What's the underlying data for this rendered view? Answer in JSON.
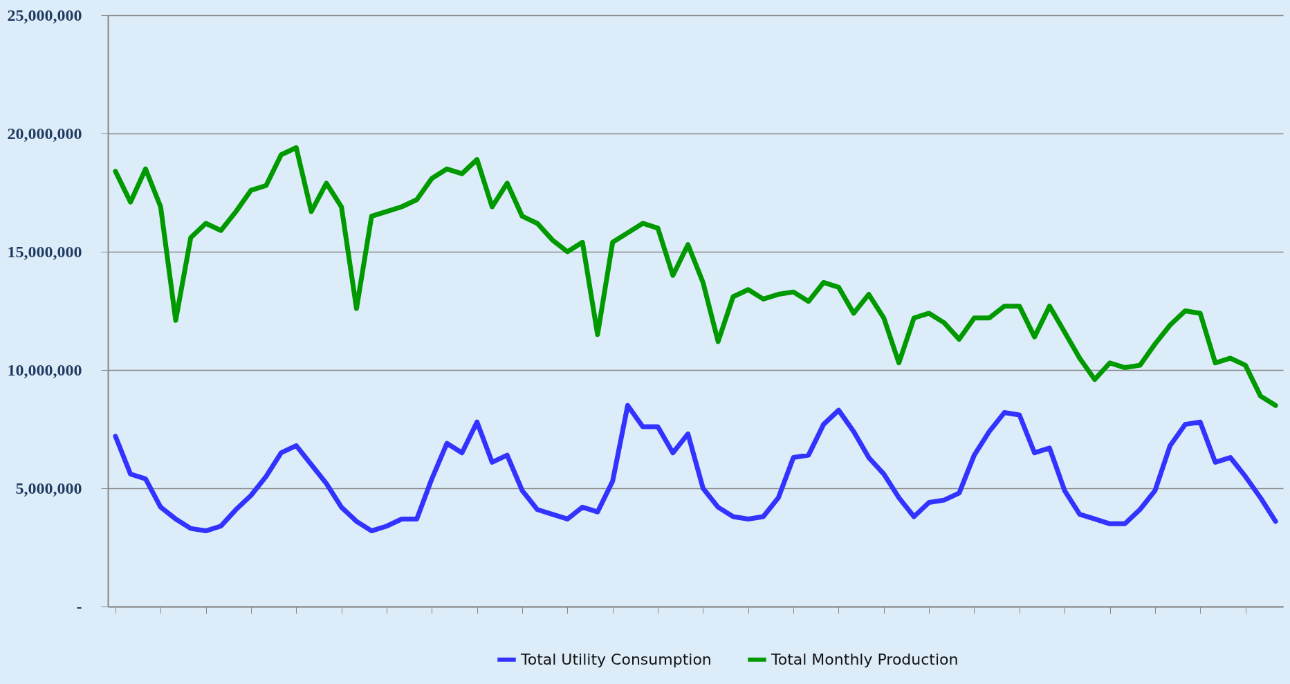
{
  "chart_data": {
    "type": "line",
    "categories": [
      null,
      null,
      null,
      null,
      null,
      null,
      null,
      null,
      null,
      null,
      null,
      null,
      null,
      null,
      null,
      null,
      null,
      null,
      null,
      null,
      null,
      null,
      null,
      null,
      null,
      null,
      null,
      null,
      null,
      null,
      null,
      null,
      null,
      null,
      null,
      null,
      null,
      null,
      null,
      null,
      null,
      null,
      null,
      null,
      null,
      null,
      null,
      null,
      null,
      null,
      null,
      null,
      null,
      null,
      null,
      null,
      null,
      null,
      null,
      null,
      null,
      null,
      null,
      null,
      null,
      null,
      null,
      null,
      null,
      null,
      null,
      null,
      null,
      null,
      null,
      null,
      null,
      null
    ],
    "series": [
      {
        "name": "Total Utility Consumption",
        "color": "#3333ff",
        "values": [
          7200000,
          5600000,
          5400000,
          4200000,
          3700000,
          3300000,
          3200000,
          3400000,
          4100000,
          4700000,
          5500000,
          6500000,
          6800000,
          6000000,
          5200000,
          4200000,
          3600000,
          3200000,
          3400000,
          3700000,
          3700000,
          5400000,
          6900000,
          6500000,
          7800000,
          6100000,
          6400000,
          4900000,
          4100000,
          3900000,
          3700000,
          4200000,
          4000000,
          5300000,
          8500000,
          7600000,
          7600000,
          6500000,
          7300000,
          5000000,
          4200000,
          3800000,
          3700000,
          3800000,
          4600000,
          6300000,
          6400000,
          7700000,
          8300000,
          7400000,
          6300000,
          5600000,
          4600000,
          3800000,
          4400000,
          4500000,
          4800000,
          6400000,
          7400000,
          8200000,
          8100000,
          6500000,
          6700000,
          4900000,
          3900000,
          3700000,
          3500000,
          3500000,
          4100000,
          4900000,
          6800000,
          7700000,
          7800000,
          6100000,
          6300000,
          5500000,
          4600000,
          3600000
        ]
      },
      {
        "name": "Total Monthly Production",
        "color": "#009900",
        "values": [
          18400000,
          17100000,
          18500000,
          16900000,
          12100000,
          15600000,
          16200000,
          15900000,
          16700000,
          17600000,
          17800000,
          19100000,
          19400000,
          16700000,
          17900000,
          16900000,
          12600000,
          16500000,
          16700000,
          16900000,
          17200000,
          18100000,
          18500000,
          18300000,
          18900000,
          16900000,
          17900000,
          16500000,
          16200000,
          15500000,
          15000000,
          15400000,
          11500000,
          15400000,
          15800000,
          16200000,
          16000000,
          14000000,
          15300000,
          13700000,
          11200000,
          13100000,
          13400000,
          13000000,
          13200000,
          13300000,
          12900000,
          13700000,
          13500000,
          12400000,
          13200000,
          12200000,
          10300000,
          12200000,
          12400000,
          12000000,
          11300000,
          12200000,
          12200000,
          12700000,
          12700000,
          11400000,
          12700000,
          11600000,
          10500000,
          9600000,
          10300000,
          10100000,
          10200000,
          11100000,
          11900000,
          12500000,
          12400000,
          10300000,
          10500000,
          10200000,
          8900000,
          8500000
        ]
      }
    ],
    "ylim": [
      0,
      25000000
    ],
    "yticks": [
      {
        "value": 0,
        "label": "-"
      },
      {
        "value": 5000000,
        "label": "5,000,000"
      },
      {
        "value": 10000000,
        "label": "10,000,000"
      },
      {
        "value": 15000000,
        "label": "15,000,000"
      },
      {
        "value": 20000000,
        "label": "20,000,000"
      },
      {
        "value": 25000000,
        "label": "25,000,000"
      }
    ],
    "grid": "y",
    "legend": "bottom",
    "tick_labels": "y",
    "line_style": "solid",
    "marker": "none"
  }
}
